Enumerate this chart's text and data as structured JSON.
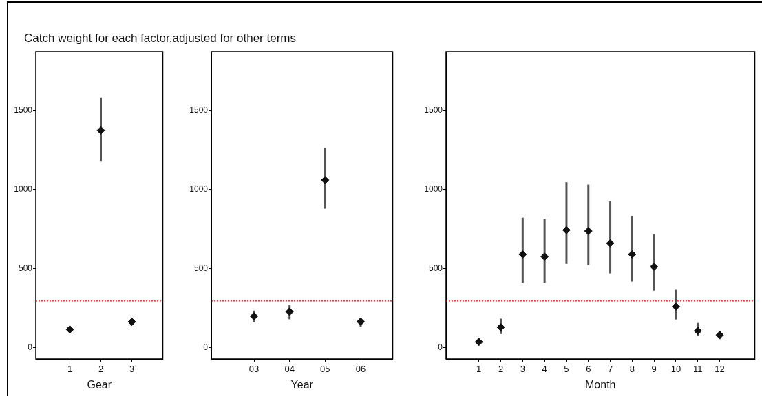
{
  "chart_data": [
    {
      "type": "scatter",
      "title": "Catch weight for each factor,adjusted for other terms",
      "xlabel": "Gear",
      "x": [
        1,
        2,
        3
      ],
      "values": [
        116,
        1372,
        164
      ],
      "errors": [
        null,
        [
          1179,
          1580
        ],
        null
      ],
      "color": "#111111",
      "marker": "diamond",
      "xlim": [
        -0.1,
        4
      ],
      "xticks": [
        1,
        2,
        3
      ],
      "ylim": [
        -70,
        1870
      ],
      "yticks": [
        0,
        500,
        1000,
        1500
      ],
      "grid": false,
      "legend": false,
      "ref_lines": [
        {
          "axis": "y",
          "value": 295,
          "color": "#ff0000",
          "line_style": "dotted"
        }
      ]
    },
    {
      "type": "scatter",
      "xlabel": "Year",
      "x": [
        3,
        4,
        5,
        6
      ],
      "values": [
        199,
        228,
        1058,
        165
      ],
      "errors": [
        [
          161,
          235
        ],
        [
          180,
          268
        ],
        [
          878,
          1259
        ],
        [
          131,
          190
        ]
      ],
      "color": "#111111",
      "marker": "diamond",
      "xlim": [
        1.8,
        6.9
      ],
      "xticks": [
        {
          "value": 3,
          "label": "03"
        },
        {
          "value": 4,
          "label": "04"
        },
        {
          "value": 5,
          "label": "05"
        },
        {
          "value": 6,
          "label": "06"
        }
      ],
      "ylim": [
        -70,
        1870
      ],
      "yticks": [
        0,
        500,
        1000,
        1500
      ],
      "grid": false,
      "legend": false,
      "ref_lines": [
        {
          "axis": "y",
          "value": 295,
          "color": "#ff0000",
          "line_style": "dotted"
        }
      ]
    },
    {
      "type": "scatter",
      "xlabel": "Month",
      "x": [
        1,
        2,
        3,
        4,
        5,
        6,
        7,
        8,
        9,
        10,
        11,
        12
      ],
      "values": [
        37,
        130,
        590,
        576,
        743,
        737,
        660,
        590,
        512,
        261,
        107,
        81
      ],
      "errors": [
        null,
        [
          87,
          184
        ],
        [
          410,
          821
        ],
        [
          410,
          813
        ],
        [
          530,
          1045
        ],
        [
          522,
          1030
        ],
        [
          470,
          925
        ],
        [
          418,
          833
        ],
        [
          361,
          716
        ],
        [
          179,
          366
        ],
        [
          75,
          157
        ],
        [
          55,
          104
        ]
      ],
      "color": "#111111",
      "marker": "diamond",
      "xlim": [
        -0.5,
        13.6
      ],
      "xticks": [
        1,
        2,
        3,
        4,
        5,
        6,
        7,
        8,
        9,
        10,
        11,
        12
      ],
      "ylim": [
        -70,
        1870
      ],
      "yticks": [
        0,
        500,
        1000,
        1500
      ],
      "grid": false,
      "legend": false,
      "ref_lines": [
        {
          "axis": "y",
          "value": 295,
          "color": "#ff0000",
          "line_style": "dotted"
        }
      ]
    }
  ]
}
